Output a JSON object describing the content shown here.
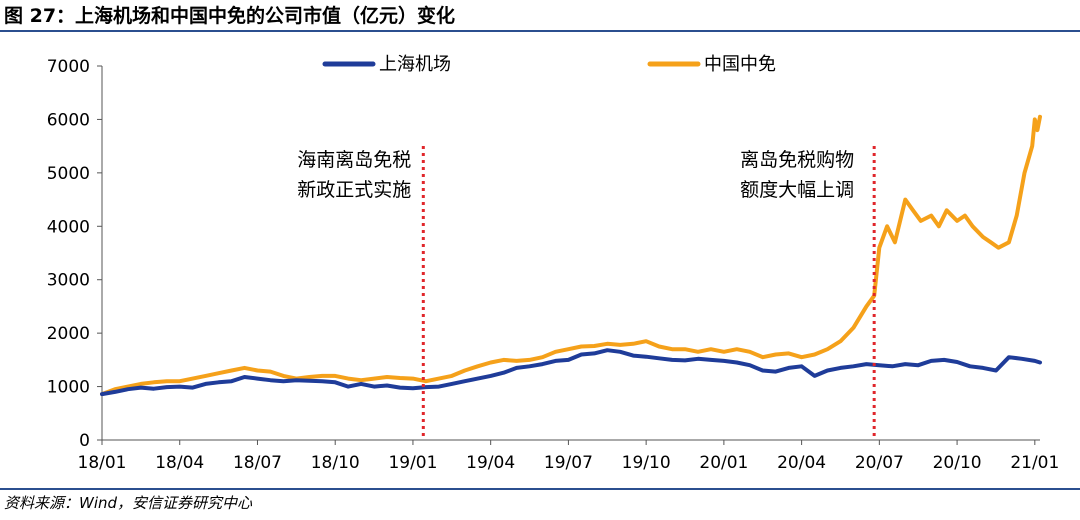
{
  "figure": {
    "title": "图 27：上海机场和中国中免的公司市值（亿元）变化",
    "source": "资料来源：Wind，安信证券研究中心"
  },
  "colors": {
    "series_1": "#1f3c99",
    "series_2": "#f5a11a",
    "event_line": "#e0262b",
    "title_blue": "#2b4f8f"
  },
  "chart_data": {
    "type": "line",
    "title": "上海机场和中国中免的公司市值（亿元）变化",
    "xlabel": "",
    "ylabel": "",
    "ylim": [
      0,
      7000
    ],
    "yticks": [
      0,
      1000,
      2000,
      3000,
      4000,
      5000,
      6000,
      7000
    ],
    "xticks": [
      "18/01",
      "18/04",
      "18/07",
      "18/10",
      "19/01",
      "19/04",
      "19/07",
      "19/10",
      "20/01",
      "20/04",
      "20/07",
      "20/10",
      "21/01"
    ],
    "legend": [
      "上海机场",
      "中国中免"
    ],
    "legend_position": "top",
    "annotations": [
      {
        "x": 12.4,
        "lines": [
          "海南离岛免税",
          "新政正式实施"
        ]
      },
      {
        "x": 29.8,
        "lines": [
          "离岛免税购物",
          "额度大幅上调"
        ]
      }
    ],
    "series": [
      {
        "name": "上海机场",
        "x": [
          0,
          0.5,
          1,
          1.5,
          2,
          2.5,
          3,
          3.5,
          4,
          4.5,
          5,
          5.5,
          6,
          6.5,
          7,
          7.5,
          8,
          8.5,
          9,
          9.5,
          10,
          10.5,
          11,
          11.5,
          12,
          12.5,
          13,
          13.5,
          14,
          14.5,
          15,
          15.5,
          16,
          16.5,
          17,
          17.5,
          18,
          18.5,
          19,
          19.5,
          20,
          20.5,
          21,
          21.5,
          22,
          22.5,
          23,
          23.5,
          24,
          24.5,
          25,
          25.5,
          26,
          26.5,
          27,
          27.5,
          28,
          28.5,
          29,
          29.5,
          30,
          30.5,
          31,
          31.5,
          32,
          32.5,
          33,
          33.5,
          34,
          34.5,
          35,
          35.5,
          36,
          36.2
        ],
        "values": [
          860,
          900,
          950,
          980,
          960,
          990,
          1000,
          980,
          1050,
          1080,
          1100,
          1180,
          1150,
          1120,
          1100,
          1120,
          1110,
          1100,
          1080,
          1000,
          1050,
          1000,
          1020,
          980,
          970,
          990,
          1000,
          1050,
          1100,
          1150,
          1200,
          1260,
          1350,
          1380,
          1420,
          1480,
          1500,
          1600,
          1620,
          1680,
          1650,
          1580,
          1560,
          1530,
          1500,
          1490,
          1520,
          1500,
          1480,
          1450,
          1400,
          1300,
          1280,
          1350,
          1380,
          1200,
          1300,
          1350,
          1380,
          1420,
          1400,
          1380,
          1420,
          1400,
          1480,
          1500,
          1460,
          1380,
          1350,
          1300,
          1550,
          1520,
          1480,
          1450
        ]
      },
      {
        "name": "中国中免",
        "x": [
          0,
          0.5,
          1,
          1.5,
          2,
          2.5,
          3,
          3.5,
          4,
          4.5,
          5,
          5.5,
          6,
          6.5,
          7,
          7.5,
          8,
          8.5,
          9,
          9.5,
          10,
          10.5,
          11,
          11.5,
          12,
          12.5,
          13,
          13.5,
          14,
          14.5,
          15,
          15.5,
          16,
          16.5,
          17,
          17.5,
          18,
          18.5,
          19,
          19.5,
          20,
          20.5,
          21,
          21.5,
          22,
          22.5,
          23,
          23.5,
          24,
          24.5,
          25,
          25.5,
          26,
          26.5,
          27,
          27.5,
          28,
          28.5,
          29,
          29.5,
          29.8,
          30,
          30.3,
          30.6,
          31,
          31.3,
          31.6,
          32,
          32.3,
          32.6,
          33,
          33.3,
          33.6,
          34,
          34.3,
          34.6,
          35,
          35.3,
          35.6,
          35.9,
          36,
          36.1,
          36.2
        ],
        "values": [
          860,
          950,
          1000,
          1050,
          1080,
          1100,
          1100,
          1150,
          1200,
          1250,
          1300,
          1350,
          1300,
          1280,
          1200,
          1150,
          1180,
          1200,
          1200,
          1150,
          1120,
          1150,
          1180,
          1160,
          1150,
          1100,
          1150,
          1200,
          1300,
          1380,
          1450,
          1500,
          1480,
          1500,
          1550,
          1650,
          1700,
          1750,
          1760,
          1800,
          1780,
          1800,
          1850,
          1750,
          1700,
          1700,
          1650,
          1700,
          1650,
          1700,
          1650,
          1550,
          1600,
          1620,
          1550,
          1600,
          1700,
          1850,
          2100,
          2500,
          2700,
          3600,
          4000,
          3700,
          4500,
          4300,
          4100,
          4200,
          4000,
          4300,
          4100,
          4200,
          4000,
          3800,
          3700,
          3600,
          3700,
          4200,
          5000,
          5500,
          6000,
          5800,
          6050
        ]
      }
    ]
  }
}
